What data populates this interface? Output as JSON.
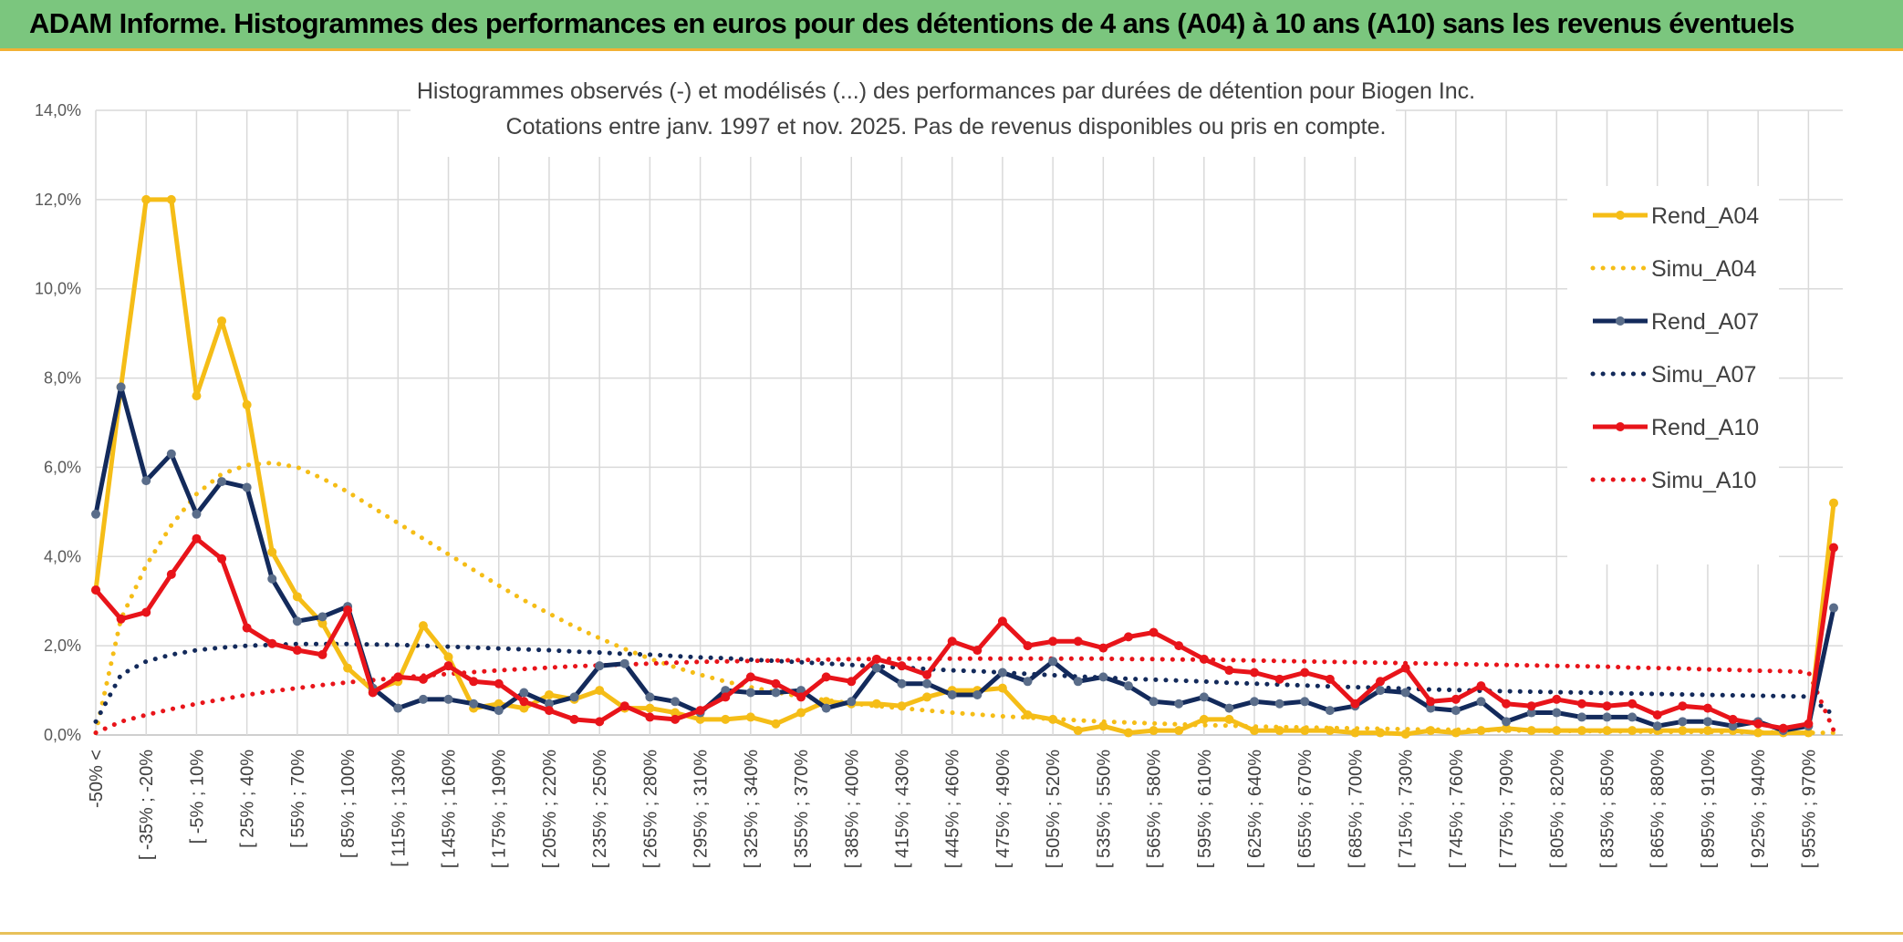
{
  "header": {
    "title": "ADAM Informe. Histogrammes des performances en euros pour des détentions de 4 ans (A04) à 10 ans (A10) sans les revenus éventuels"
  },
  "chart_data": {
    "type": "line",
    "title": "Histogrammes observés (-) et modélisés (...) des performances par durées de détention pour Biogen Inc.",
    "subtitle": "Cotations entre janv. 1997 et nov. 2025. Pas de revenus disponibles ou pris en compte.",
    "xlabel": "",
    "ylabel": "",
    "ylim": [
      0,
      14
    ],
    "yticks": [
      "0,0%",
      "2,0%",
      "4,0%",
      "6,0%",
      "8,0%",
      "10,0%",
      "12,0%",
      "14,0%"
    ],
    "grid": true,
    "legend_position": "right",
    "x_tick_labels": [
      "-50% <",
      "[ -35% ; -20%",
      "[ -5% ; 10%",
      "[ 25% ; 40%",
      "[ 55% ; 70%",
      "[ 85% ; 100%",
      "[ 115% ; 130%",
      "[ 145% ; 160%",
      "[ 175% ; 190%",
      "[ 205% ; 220%",
      "[ 235% ; 250%",
      "[ 265% ; 280%",
      "[ 295% ; 310%",
      "[ 325% ; 340%",
      "[ 355% ; 370%",
      "[ 385% ; 400%",
      "[ 415% ; 430%",
      "[ 445% ; 460%",
      "[ 475% ; 490%",
      "[ 505% ; 520%",
      "[ 535% ; 550%",
      "[ 565% ; 580%",
      "[ 595% ; 610%",
      "[ 625% ; 640%",
      "[ 655% ; 670%",
      "[ 685% ; 700%",
      "[ 715% ; 730%",
      "[ 745% ; 760%",
      "[ 775% ; 790%",
      "[ 805% ; 820%",
      "[ 835% ; 850%",
      "[ 865% ; 880%",
      "[ 895% ; 910%",
      "[ 925% ; 940%",
      "[ 955% ; 970%"
    ],
    "series": [
      {
        "name": "Rend_A04",
        "style": "solid",
        "color": "#f5bd17",
        "values": [
          3.25,
          7.8,
          12.0,
          12.0,
          7.6,
          9.28,
          7.4,
          4.1,
          3.1,
          2.5,
          1.5,
          1.0,
          1.2,
          2.45,
          1.75,
          0.6,
          0.7,
          0.6,
          0.9,
          0.8,
          1.0,
          0.6,
          0.6,
          0.5,
          0.35,
          0.35,
          0.4,
          0.25,
          0.5,
          0.75,
          0.7,
          0.7,
          0.65,
          0.85,
          1.0,
          1.0,
          1.05,
          0.45,
          0.35,
          0.1,
          0.2,
          0.05,
          0.1,
          0.1,
          0.35,
          0.35,
          0.1,
          0.1,
          0.1,
          0.1,
          0.05,
          0.05,
          0.02,
          0.1,
          0.05,
          0.1,
          0.15,
          0.1,
          0.1,
          0.1,
          0.1,
          0.1,
          0.1,
          0.1,
          0.1,
          0.1,
          0.05,
          0.05,
          0.05,
          5.2
        ]
      },
      {
        "name": "Simu_A04",
        "style": "dotted",
        "color": "#f5bd17",
        "values": [
          0.05,
          2.6,
          3.8,
          4.7,
          5.4,
          5.85,
          6.05,
          6.1,
          6.0,
          5.75,
          5.45,
          5.1,
          4.75,
          4.4,
          4.05,
          3.7,
          3.35,
          3.02,
          2.72,
          2.43,
          2.17,
          1.93,
          1.71,
          1.52,
          1.35,
          1.2,
          1.07,
          0.96,
          0.86,
          0.78,
          0.71,
          0.65,
          0.6,
          0.55,
          0.5,
          0.46,
          0.42,
          0.39,
          0.36,
          0.33,
          0.3,
          0.28,
          0.26,
          0.24,
          0.22,
          0.21,
          0.19,
          0.18,
          0.17,
          0.16,
          0.15,
          0.14,
          0.13,
          0.12,
          0.12,
          0.11,
          0.1,
          0.1,
          0.09,
          0.09,
          0.08,
          0.08,
          0.07,
          0.07,
          0.07,
          0.06,
          0.06,
          0.06,
          0.05,
          0.05
        ]
      },
      {
        "name": "Rend_A07",
        "style": "solid",
        "color": "#132a5b",
        "values": [
          4.95,
          7.8,
          5.7,
          6.3,
          4.95,
          5.68,
          5.55,
          3.5,
          2.55,
          2.65,
          2.88,
          1.05,
          0.6,
          0.8,
          0.8,
          0.7,
          0.55,
          0.95,
          0.7,
          0.85,
          1.55,
          1.6,
          0.85,
          0.75,
          0.5,
          1.0,
          0.95,
          0.95,
          1.0,
          0.6,
          0.75,
          1.5,
          1.15,
          1.15,
          0.9,
          0.9,
          1.4,
          1.2,
          1.65,
          1.2,
          1.3,
          1.1,
          0.75,
          0.7,
          0.85,
          0.6,
          0.75,
          0.7,
          0.75,
          0.55,
          0.65,
          1.0,
          0.95,
          0.6,
          0.55,
          0.75,
          0.3,
          0.5,
          0.5,
          0.4,
          0.4,
          0.4,
          0.2,
          0.3,
          0.3,
          0.2,
          0.3,
          0.1,
          0.2,
          2.85
        ]
      },
      {
        "name": "Simu_A07",
        "style": "dotted",
        "color": "#132a5b",
        "values": [
          0.3,
          1.35,
          1.65,
          1.8,
          1.9,
          1.96,
          2.0,
          2.02,
          2.04,
          2.04,
          2.04,
          2.03,
          2.02,
          2.0,
          1.98,
          1.96,
          1.94,
          1.92,
          1.9,
          1.87,
          1.85,
          1.82,
          1.8,
          1.77,
          1.74,
          1.72,
          1.69,
          1.66,
          1.63,
          1.6,
          1.57,
          1.54,
          1.51,
          1.48,
          1.45,
          1.43,
          1.4,
          1.37,
          1.34,
          1.31,
          1.29,
          1.26,
          1.24,
          1.22,
          1.2,
          1.17,
          1.15,
          1.13,
          1.11,
          1.09,
          1.07,
          1.06,
          1.04,
          1.02,
          1.01,
          0.99,
          0.98,
          0.97,
          0.96,
          0.95,
          0.94,
          0.93,
          0.92,
          0.91,
          0.9,
          0.89,
          0.88,
          0.87,
          0.86,
          0.45
        ]
      },
      {
        "name": "Rend_A10",
        "style": "solid",
        "color": "#e8141a",
        "values": [
          3.25,
          2.6,
          2.75,
          3.6,
          4.4,
          3.95,
          2.4,
          2.05,
          1.9,
          1.8,
          2.8,
          0.95,
          1.3,
          1.25,
          1.55,
          1.2,
          1.15,
          0.75,
          0.55,
          0.35,
          0.3,
          0.65,
          0.4,
          0.35,
          0.55,
          0.85,
          1.3,
          1.15,
          0.85,
          1.3,
          1.2,
          1.7,
          1.55,
          1.35,
          2.1,
          1.9,
          2.55,
          2.0,
          2.1,
          2.1,
          1.95,
          2.2,
          2.3,
          2.0,
          1.7,
          1.45,
          1.4,
          1.25,
          1.4,
          1.25,
          0.7,
          1.2,
          1.5,
          0.75,
          0.8,
          1.1,
          0.7,
          0.65,
          0.8,
          0.7,
          0.65,
          0.7,
          0.45,
          0.65,
          0.6,
          0.35,
          0.25,
          0.15,
          0.25,
          4.2
        ]
      },
      {
        "name": "Simu_A10",
        "style": "dotted",
        "color": "#e8141a",
        "values": [
          0.05,
          0.3,
          0.45,
          0.58,
          0.7,
          0.8,
          0.9,
          0.98,
          1.05,
          1.12,
          1.18,
          1.23,
          1.28,
          1.33,
          1.37,
          1.41,
          1.45,
          1.48,
          1.51,
          1.54,
          1.56,
          1.58,
          1.6,
          1.62,
          1.64,
          1.65,
          1.66,
          1.67,
          1.68,
          1.69,
          1.7,
          1.7,
          1.71,
          1.71,
          1.71,
          1.71,
          1.71,
          1.71,
          1.71,
          1.71,
          1.71,
          1.7,
          1.7,
          1.69,
          1.69,
          1.68,
          1.67,
          1.66,
          1.65,
          1.64,
          1.63,
          1.62,
          1.61,
          1.6,
          1.59,
          1.58,
          1.57,
          1.56,
          1.55,
          1.54,
          1.53,
          1.51,
          1.5,
          1.49,
          1.47,
          1.46,
          1.44,
          1.43,
          1.41,
          0.1
        ]
      }
    ]
  }
}
